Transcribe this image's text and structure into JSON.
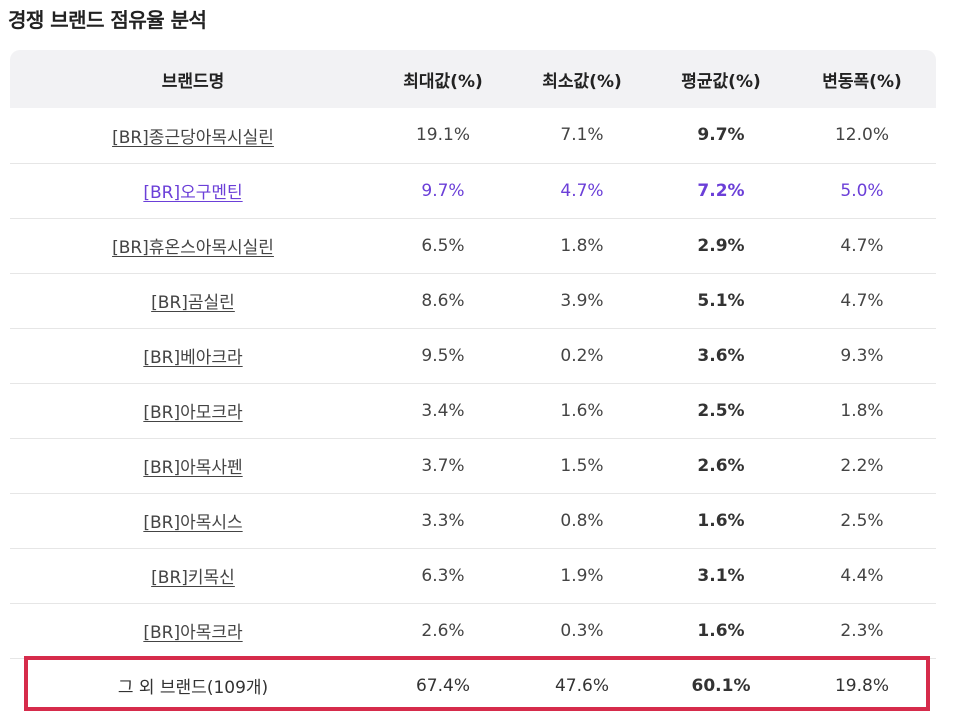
{
  "title": "경쟁 브랜드 점유율 분석",
  "colors": {
    "header_bg": "#f2f2f4",
    "highlight_text": "#6b3fd8",
    "frame_border": "#d62b4b"
  },
  "table": {
    "headers": {
      "brand": "브랜드명",
      "max": "최대값(%)",
      "min": "최소값(%)",
      "avg": "평균값(%)",
      "variance": "변동폭(%)"
    },
    "rows": [
      {
        "brand": "[BR]종근당아목시실린",
        "max": "19.1%",
        "min": "7.1%",
        "avg": "9.7%",
        "variance": "12.0%"
      },
      {
        "brand": "[BR]오구멘틴",
        "max": "9.7%",
        "min": "4.7%",
        "avg": "7.2%",
        "variance": "5.0%"
      },
      {
        "brand": "[BR]휴온스아목시실린",
        "max": "6.5%",
        "min": "1.8%",
        "avg": "2.9%",
        "variance": "4.7%"
      },
      {
        "brand": "[BR]곰실린",
        "max": "8.6%",
        "min": "3.9%",
        "avg": "5.1%",
        "variance": "4.7%"
      },
      {
        "brand": "[BR]베아크라",
        "max": "9.5%",
        "min": "0.2%",
        "avg": "3.6%",
        "variance": "9.3%"
      },
      {
        "brand": "[BR]아모크라",
        "max": "3.4%",
        "min": "1.6%",
        "avg": "2.5%",
        "variance": "1.8%"
      },
      {
        "brand": "[BR]아목사펜",
        "max": "3.7%",
        "min": "1.5%",
        "avg": "2.6%",
        "variance": "2.2%"
      },
      {
        "brand": "[BR]아목시스",
        "max": "3.3%",
        "min": "0.8%",
        "avg": "1.6%",
        "variance": "2.5%"
      },
      {
        "brand": "[BR]키목신",
        "max": "6.3%",
        "min": "1.9%",
        "avg": "3.1%",
        "variance": "4.4%"
      },
      {
        "brand": "[BR]아목크라",
        "max": "2.6%",
        "min": "0.3%",
        "avg": "1.6%",
        "variance": "2.3%"
      }
    ],
    "others": {
      "brand": "그 외 브랜드(109개)",
      "max": "67.4%",
      "min": "47.6%",
      "avg": "60.1%",
      "variance": "19.8%"
    }
  }
}
